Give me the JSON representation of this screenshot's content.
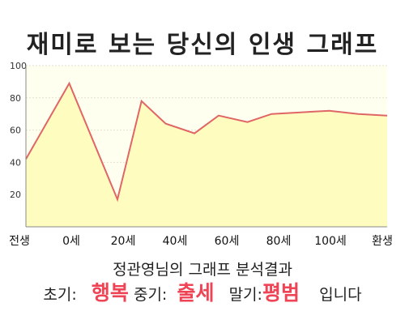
{
  "title": "재미로 보는 당신의 인생 그래프",
  "chart_data": {
    "type": "area",
    "title": "재미로 보는 당신의 인생 그래프",
    "xlabel": "",
    "ylabel": "",
    "x_tick_labels": [
      "전생",
      "0세",
      "20세",
      "40세",
      "60세",
      "80세",
      "100세",
      "환생"
    ],
    "y_ticks": [
      20,
      40,
      60,
      80,
      100
    ],
    "ylim": [
      0,
      100
    ],
    "grid": true,
    "legend": "none",
    "points": [
      {
        "x": 0,
        "y": 42
      },
      {
        "x": 9,
        "y": 89
      },
      {
        "x": 19,
        "y": 17
      },
      {
        "x": 24,
        "y": 78
      },
      {
        "x": 29,
        "y": 64
      },
      {
        "x": 35,
        "y": 58
      },
      {
        "x": 40,
        "y": 69
      },
      {
        "x": 46,
        "y": 65
      },
      {
        "x": 51,
        "y": 70
      },
      {
        "x": 63,
        "y": 72
      },
      {
        "x": 69,
        "y": 70
      },
      {
        "x": 75,
        "y": 69
      }
    ],
    "x_range": [
      0,
      75
    ],
    "line_color": "#e06666",
    "fill_color": "#fffcc0",
    "plot_background": "#fffff0"
  },
  "analysis": "정관영님의 그래프 분석결과",
  "results": {
    "early_label": "초기:",
    "early_value": "행복",
    "mid_label": "중기:",
    "mid_value": "출세",
    "late_label": "말기:",
    "late_value": "평범",
    "ending": "입니다"
  }
}
